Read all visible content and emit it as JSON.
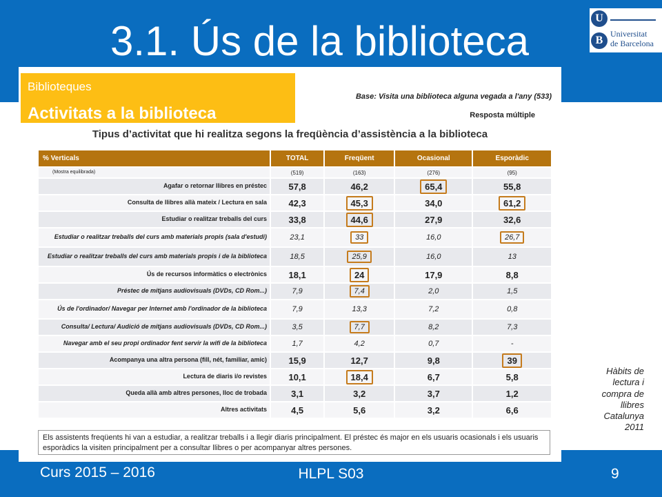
{
  "slide": {
    "title": "3.1. Ús de la biblioteca",
    "logo": {
      "line1": "Universitat",
      "line2": "de Barcelona",
      "letter_u": "U",
      "letter_b": "B"
    },
    "footer": {
      "left": "Curs 2015 – 2016",
      "center": "HLPL S03",
      "page": "9"
    },
    "source": "Hàbits de lectura i compra de llibres Catalunya 2011"
  },
  "report": {
    "category": "Biblioteques",
    "heading": "Activitats a la biblioteca",
    "base": "Base: Visita una biblioteca alguna vegada a l'any (533)",
    "response": "Resposta múltiple",
    "chart_title": "Tipus d’activitat que hi realitza segons la freqüència d’assistència a la biblioteca",
    "summary": "Els assistents freqüents hi van a estudiar, a realitzar treballs i a llegir diaris principalment. El préstec és major en els usuaris ocasionals i els usuaris esporàdics la visiten principalment per a consultar llibres o per acompanyar altres persones."
  },
  "table": {
    "headers": [
      "% Verticals",
      "TOTAL",
      "Freqüent",
      "Ocasional",
      "Esporàdic"
    ],
    "sample": {
      "label": "(Mostra equilibrada)",
      "values": [
        "(519)",
        "(163)",
        "(276)",
        "(95)"
      ]
    },
    "rows": [
      {
        "label": "Agafar o retornar llibres en préstec",
        "values": [
          "57,8",
          "46,2",
          "65,4",
          "55,8"
        ]
      },
      {
        "label": "Consulta de llibres allà mateix / Lectura en sala",
        "values": [
          "42,3",
          "45,3",
          "34,0",
          "61,2"
        ]
      },
      {
        "label": "Estudiar o realitzar treballs del curs",
        "values": [
          "33,8",
          "44,6",
          "27,9",
          "32,6"
        ]
      },
      {
        "label": "Estudiar o realitzar treballs del curs amb materials propis (sala d'estudi)",
        "values": [
          "23,1",
          "33",
          "16,0",
          "26,7"
        ]
      },
      {
        "label": "Estudiar o realitzar treballs del curs amb materials propis i de la biblioteca",
        "values": [
          "18,5",
          "25,9",
          "16,0",
          "13"
        ]
      },
      {
        "label": "Ús de recursos informàtics o electrònics",
        "values": [
          "18,1",
          "24",
          "17,9",
          "8,8"
        ]
      },
      {
        "label": "Préstec de mitjans audiovisuals (DVDs, CD Rom...)",
        "values": [
          "7,9",
          "7,4",
          "2,0",
          "1,5"
        ]
      },
      {
        "label": "Ús de l'ordinador/ Navegar per Internet amb l'ordinador de la biblioteca",
        "values": [
          "7,9",
          "13,3",
          "7,2",
          "0,8"
        ]
      },
      {
        "label": "Consulta/ Lectura/ Audició de mitjans audiovisuals (DVDs, CD Rom...)",
        "values": [
          "3,5",
          "7,7",
          "8,2",
          "7,3"
        ]
      },
      {
        "label": "Navegar amb el seu propi ordinador fent servir la wifi de la biblioteca",
        "values": [
          "1,7",
          "4,2",
          "0,7",
          "-"
        ]
      },
      {
        "label": "Acompanya una altra persona (fill, nét, familiar, amic)",
        "values": [
          "15,9",
          "12,7",
          "9,8",
          "39"
        ]
      },
      {
        "label": "Lectura de diaris i/o revistes",
        "values": [
          "10,1",
          "18,4",
          "6,7",
          "5,8"
        ]
      },
      {
        "label": "Queda allà amb altres persones, lloc de trobada",
        "values": [
          "3,1",
          "3,2",
          "3,7",
          "1,2"
        ]
      },
      {
        "label": "Altres activitats",
        "values": [
          "4,5",
          "5,6",
          "3,2",
          "6,6"
        ]
      }
    ]
  },
  "colors": {
    "blue": "#0a6dbf",
    "orange": "#fdbe14",
    "header": "#b5740f",
    "highlight": "#c57b1c"
  }
}
